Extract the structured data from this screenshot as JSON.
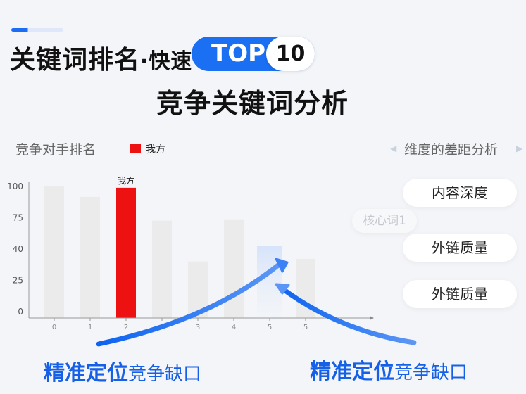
{
  "header": {
    "title_main": "关键词排名",
    "title_dot": "·快速",
    "badge_top": "TOP",
    "badge_num": "10",
    "subtitle": "竞争关键词分析"
  },
  "panel_left": {
    "label": "竞争对手排名"
  },
  "panel_right": {
    "label": "维度的差距分析"
  },
  "dimensions": [
    {
      "label": "内容深度"
    },
    {
      "label": "核心词1",
      "faint": true
    },
    {
      "label": "外链质量"
    },
    {
      "label": "外链质量"
    }
  ],
  "callouts": [
    {
      "strong": "精准定位",
      "rest": "竞争缺口"
    },
    {
      "strong": "精准定位",
      "rest": "竞争缺口"
    }
  ],
  "colors": {
    "accent": "#1a6ff2",
    "highlight_bar": "#ee1111",
    "other_bar": "#ebebeb",
    "target_bar": "#dce7fb"
  },
  "chart_data": {
    "type": "bar",
    "legend": [
      {
        "name": "我方",
        "color": "#ee1111"
      }
    ],
    "legend_placement": "top",
    "yticks": [
      "0",
      "25",
      "40",
      "75",
      "100"
    ],
    "ylim": [
      0,
      100
    ],
    "xticks": [
      "0",
      "1",
      "2",
      "",
      "3",
      "4",
      "5",
      "5"
    ],
    "values": [
      100,
      92,
      99,
      74,
      43,
      75,
      55,
      45
    ],
    "highlight_index": 2,
    "highlight_label": "我方",
    "target_index": 6,
    "grid": false
  }
}
